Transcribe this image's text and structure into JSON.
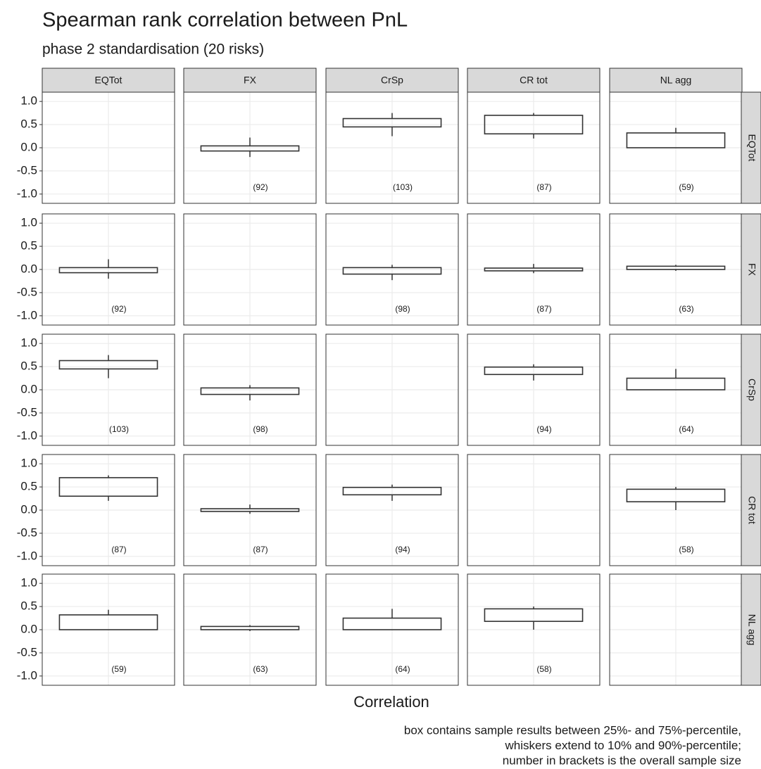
{
  "chart_data": {
    "type": "box",
    "title": "Spearman rank correlation between PnL",
    "subtitle": "phase 2 standardisation (20 risks)",
    "xlabel": "Correlation",
    "note": [
      "box contains sample results between 25%- and 75%-percentile,",
      "whiskers extend to 10% and 90%-percentile;",
      "number in brackets is the overall sample size"
    ],
    "columns": [
      "EQTot",
      "FX",
      "CrSp",
      "CR tot",
      "NL agg"
    ],
    "rows": [
      "EQTot",
      "FX",
      "CrSp",
      "CR tot",
      "NL agg"
    ],
    "ylim": [
      -1.2,
      1.2
    ],
    "yticks": [
      {
        "value": -1,
        "label": "-1.0"
      },
      -0.5,
      {
        "value": 0,
        "label": "0.0"
      },
      0.5,
      {
        "value": 1,
        "label": "1.0"
      }
    ],
    "grid": true,
    "box_color": "#333333",
    "panels": [
      [
        null,
        {
          "whisker_low": -0.2,
          "q1": -0.07,
          "q3": 0.04,
          "whisker_high": 0.22,
          "label": "(92)"
        },
        {
          "whisker_low": 0.25,
          "q1": 0.45,
          "q3": 0.63,
          "whisker_high": 0.75,
          "label": "(103)"
        },
        {
          "whisker_low": 0.2,
          "q1": 0.3,
          "q3": 0.7,
          "whisker_high": 0.75,
          "label": "(87)"
        },
        {
          "whisker_low": 0.0,
          "q1": 0.0,
          "q3": 0.32,
          "whisker_high": 0.43,
          "label": "(59)"
        }
      ],
      [
        {
          "whisker_low": -0.2,
          "q1": -0.07,
          "q3": 0.04,
          "whisker_high": 0.22,
          "label": "(92)"
        },
        null,
        {
          "whisker_low": -0.23,
          "q1": -0.1,
          "q3": 0.04,
          "whisker_high": 0.1,
          "label": "(98)"
        },
        {
          "whisker_low": -0.08,
          "q1": -0.03,
          "q3": 0.03,
          "whisker_high": 0.12,
          "label": "(87)"
        },
        {
          "whisker_low": -0.03,
          "q1": 0.0,
          "q3": 0.07,
          "whisker_high": 0.1,
          "label": "(63)"
        }
      ],
      [
        {
          "whisker_low": 0.25,
          "q1": 0.45,
          "q3": 0.63,
          "whisker_high": 0.75,
          "label": "(103)"
        },
        {
          "whisker_low": -0.23,
          "q1": -0.1,
          "q3": 0.04,
          "whisker_high": 0.1,
          "label": "(98)"
        },
        null,
        {
          "whisker_low": 0.2,
          "q1": 0.33,
          "q3": 0.49,
          "whisker_high": 0.55,
          "label": "(94)"
        },
        {
          "whisker_low": 0.0,
          "q1": 0.0,
          "q3": 0.25,
          "whisker_high": 0.45,
          "label": "(64)"
        }
      ],
      [
        {
          "whisker_low": 0.2,
          "q1": 0.3,
          "q3": 0.7,
          "whisker_high": 0.75,
          "label": "(87)"
        },
        {
          "whisker_low": -0.08,
          "q1": -0.03,
          "q3": 0.03,
          "whisker_high": 0.12,
          "label": "(87)"
        },
        {
          "whisker_low": 0.2,
          "q1": 0.33,
          "q3": 0.49,
          "whisker_high": 0.55,
          "label": "(94)"
        },
        null,
        {
          "whisker_low": 0.0,
          "q1": 0.18,
          "q3": 0.45,
          "whisker_high": 0.5,
          "label": "(58)"
        }
      ],
      [
        {
          "whisker_low": 0.0,
          "q1": 0.0,
          "q3": 0.32,
          "whisker_high": 0.43,
          "label": "(59)"
        },
        {
          "whisker_low": -0.03,
          "q1": 0.0,
          "q3": 0.07,
          "whisker_high": 0.1,
          "label": "(63)"
        },
        {
          "whisker_low": 0.0,
          "q1": 0.0,
          "q3": 0.25,
          "whisker_high": 0.45,
          "label": "(64)"
        },
        {
          "whisker_low": 0.0,
          "q1": 0.18,
          "q3": 0.45,
          "whisker_high": 0.5,
          "label": "(58)"
        },
        null
      ]
    ]
  }
}
